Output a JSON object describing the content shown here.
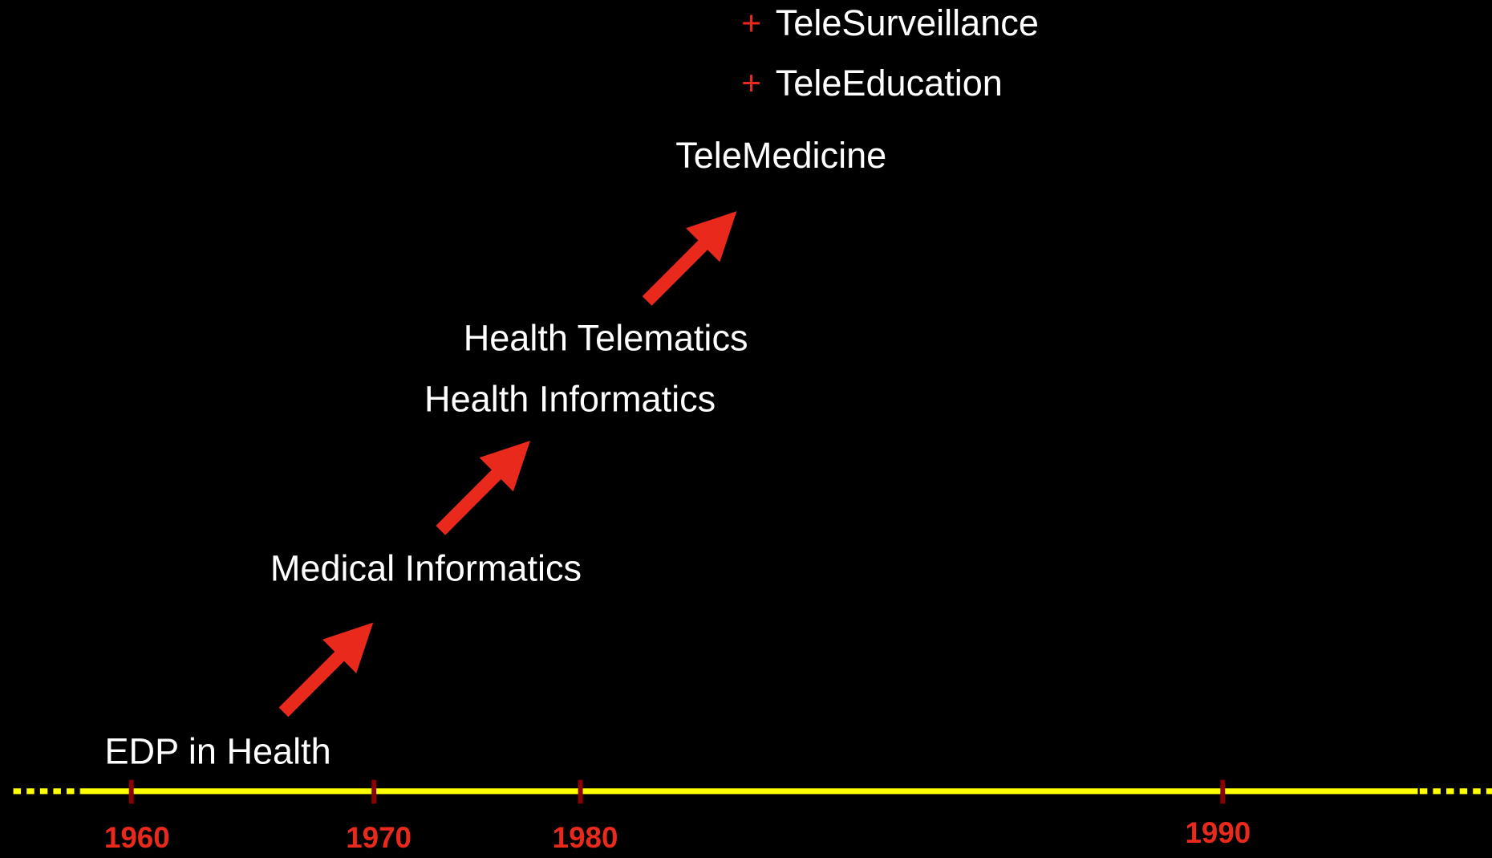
{
  "extras": [
    {
      "bullet": "+",
      "label": "TeleSurveillance"
    },
    {
      "bullet": "+",
      "label": "TeleEducation"
    }
  ],
  "stages": [
    "EDP in Health",
    "Medical Informatics",
    "Health Informatics",
    "Health Telematics",
    "TeleMedicine"
  ],
  "timeline": {
    "ticks": [
      "1960",
      "1970",
      "1980",
      "1990"
    ]
  }
}
